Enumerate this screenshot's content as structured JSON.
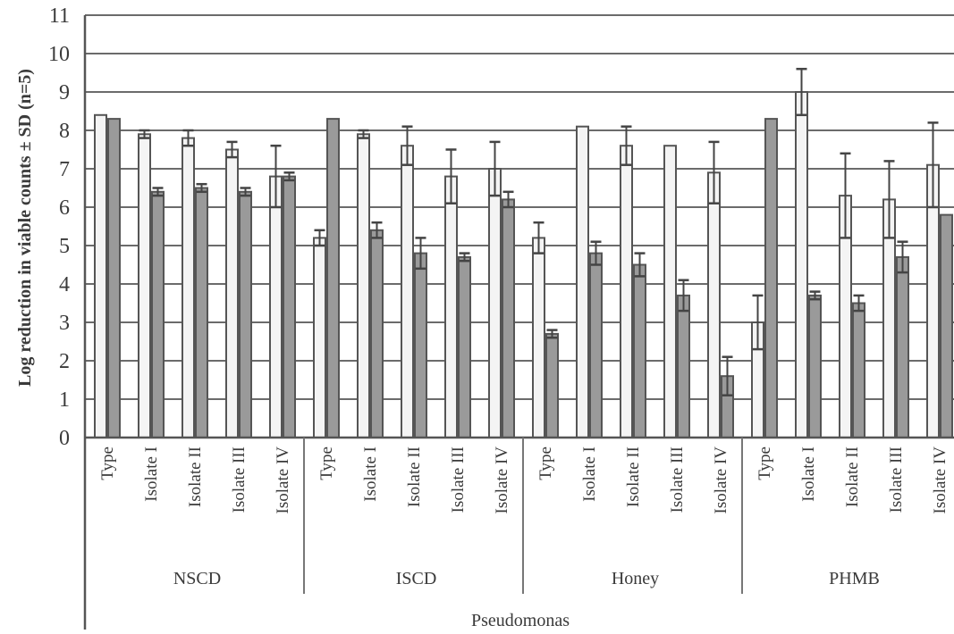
{
  "chart_data": {
    "type": "bar",
    "ylabel": "Log reduction in viable counts ± SD (n=5)",
    "xlabel": "Pseudomonas",
    "ylim": [
      0,
      11
    ],
    "yticks": [
      0,
      1,
      2,
      3,
      4,
      5,
      6,
      7,
      8,
      9,
      10,
      11
    ],
    "grid": true,
    "groups": [
      {
        "name": "NSCD",
        "categories": [
          "Type",
          "Isolate I",
          "Isolate II",
          "Isolate III",
          "Isolate IV"
        ]
      },
      {
        "name": "ISCD",
        "categories": [
          "Type",
          "Isolate I",
          "Isolate II",
          "Isolate III",
          "Isolate IV"
        ]
      },
      {
        "name": "Honey",
        "categories": [
          "Type",
          "Isolate I",
          "Isolate II",
          "Isolate III",
          "Isolate IV"
        ]
      },
      {
        "name": "PHMB",
        "categories": [
          "Type",
          "Isolate I",
          "Isolate II",
          "Isolate III",
          "Isolate IV"
        ]
      }
    ],
    "series": [
      {
        "values": [
          8.4,
          7.9,
          7.8,
          7.5,
          6.8,
          5.2,
          7.9,
          7.6,
          6.8,
          7.0,
          5.2,
          8.1,
          7.6,
          7.6,
          6.9,
          3.0,
          9.0,
          6.3,
          6.2,
          7.1
        ],
        "errors": [
          0.0,
          0.1,
          0.2,
          0.2,
          0.8,
          0.2,
          0.1,
          0.5,
          0.7,
          0.7,
          0.4,
          0.0,
          0.5,
          0.0,
          0.8,
          0.7,
          0.6,
          1.1,
          1.0,
          1.1
        ]
      },
      {
        "values": [
          8.3,
          6.4,
          6.5,
          6.4,
          6.8,
          8.3,
          5.4,
          4.8,
          4.7,
          6.2,
          2.7,
          4.8,
          4.5,
          3.7,
          1.6,
          8.3,
          3.7,
          3.5,
          4.7,
          5.8
        ],
        "errors": [
          0.0,
          0.1,
          0.1,
          0.1,
          0.1,
          0.0,
          0.2,
          0.4,
          0.1,
          0.2,
          0.1,
          0.3,
          0.3,
          0.4,
          0.5,
          0.0,
          0.1,
          0.2,
          0.4,
          0.0
        ]
      }
    ]
  }
}
